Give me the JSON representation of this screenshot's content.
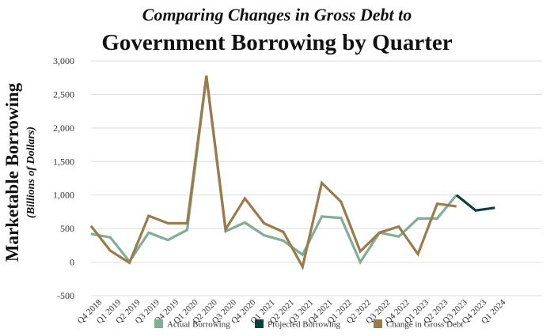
{
  "chart_data": {
    "type": "line",
    "title": "Comparing Changes in Gross Debt to",
    "subtitle": "Government Borrowing by Quarter",
    "ylabel": "Marketable Borrowing",
    "ylabel_sub": "(Billions of Dollars)",
    "xlabel": "",
    "ylim": [
      -500,
      3000
    ],
    "yticks": [
      -500,
      0,
      500,
      1000,
      1500,
      2000,
      2500,
      3000
    ],
    "ytick_labels": [
      "-500",
      "0",
      "500",
      "1,000",
      "1,500",
      "2,000",
      "2,500",
      "3,000"
    ],
    "grid": true,
    "legend_position": "bottom",
    "categories": [
      "Q4 2018",
      "Q1 2019",
      "Q2 2019",
      "Q3 2019",
      "Q4 2019",
      "Q1 2020",
      "Q2 2020",
      "Q3 2020",
      "Q4 2020",
      "Q1 2021",
      "Q2 2021",
      "Q3 2021",
      "Q4 2021",
      "Q1 2022",
      "Q2 2022",
      "Q3 2022",
      "Q4 2022",
      "Q1 2023",
      "Q2 2023",
      "Q3 2023",
      "Q4 2023",
      "Q1 2024"
    ],
    "series": [
      {
        "name": "Actual Borrowing",
        "color": "#82ad98",
        "values": [
          420,
          370,
          10,
          440,
          330,
          480,
          2760,
          460,
          590,
          400,
          320,
          110,
          680,
          660,
          0,
          440,
          380,
          650,
          650,
          1000,
          null,
          null
        ]
      },
      {
        "name": "Projected Borrowing",
        "color": "#0f3f3a",
        "values": [
          null,
          null,
          null,
          null,
          null,
          null,
          null,
          null,
          null,
          null,
          null,
          null,
          null,
          null,
          null,
          null,
          null,
          null,
          null,
          1000,
          770,
          810
        ]
      },
      {
        "name": "Change in Gross Debt",
        "color": "#9a7b4b",
        "values": [
          540,
          170,
          -10,
          690,
          580,
          580,
          2780,
          490,
          950,
          580,
          450,
          -70,
          1180,
          900,
          160,
          440,
          530,
          120,
          870,
          830,
          null,
          null
        ]
      }
    ]
  }
}
